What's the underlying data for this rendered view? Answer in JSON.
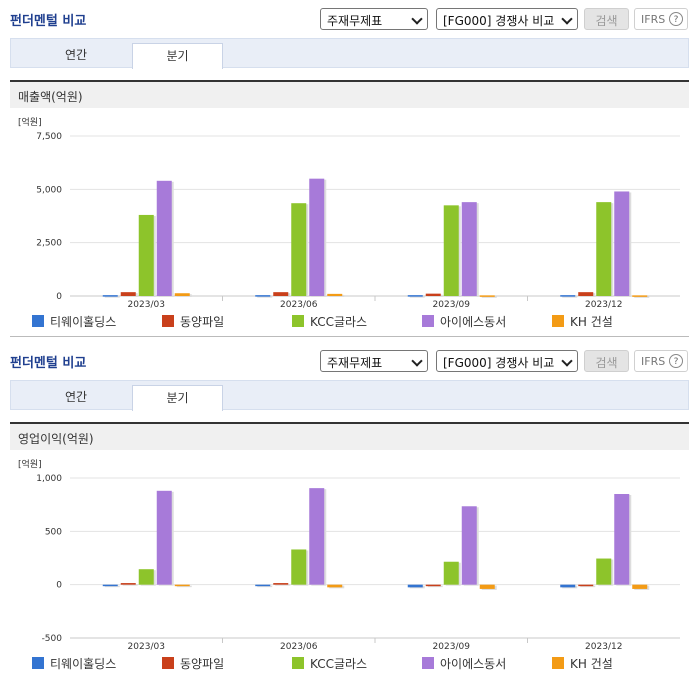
{
  "colors": {
    "series": [
      "#3374d1",
      "#c9401b",
      "#8dc42b",
      "#a77ad9",
      "#f39b15"
    ],
    "title": "#1f3f8f"
  },
  "panels": [
    {
      "title": "펀더멘털 비교",
      "select1": "주재무제표",
      "select2": "[FG000] 경쟁사 비교",
      "search_label": "검색",
      "ifrs_label": "IFRS",
      "help_icon": "?",
      "tabs": [
        "연간",
        "분기"
      ],
      "active_tab": 1,
      "section_title": "매출액(억원)"
    },
    {
      "title": "펀더멘털 비교",
      "select1": "주재무제표",
      "select2": "[FG000] 경쟁사 비교",
      "search_label": "검색",
      "ifrs_label": "IFRS",
      "help_icon": "?",
      "tabs": [
        "연간",
        "분기"
      ],
      "active_tab": 1,
      "section_title": "영업이익(억원)"
    }
  ],
  "chart_data": [
    {
      "type": "bar",
      "unit_label": "[억원]",
      "categories": [
        "2023/03",
        "2023/06",
        "2023/09",
        "2023/12"
      ],
      "yticks": [
        0,
        2500,
        5000,
        7500
      ],
      "ytick_labels": [
        "0",
        "2,500",
        "5,000",
        "7,500"
      ],
      "ylim": [
        0,
        7500
      ],
      "grid": true,
      "legend_position": "bottom",
      "series": [
        {
          "name": "티웨이홀딩스",
          "values": [
            40,
            40,
            40,
            40
          ]
        },
        {
          "name": "동양파일",
          "values": [
            180,
            180,
            110,
            180
          ]
        },
        {
          "name": "KCC글라스",
          "values": [
            3800,
            4350,
            4250,
            4400
          ]
        },
        {
          "name": "아이에스동서",
          "values": [
            5400,
            5500,
            4400,
            4900
          ]
        },
        {
          "name": "KH 건설",
          "values": [
            130,
            100,
            30,
            30
          ]
        }
      ]
    },
    {
      "type": "bar",
      "unit_label": "[억원]",
      "categories": [
        "2023/03",
        "2023/06",
        "2023/09",
        "2023/12"
      ],
      "yticks": [
        -500,
        0,
        500,
        1000
      ],
      "ytick_labels": [
        "-500",
        "0",
        "500",
        "1,000"
      ],
      "ylim": [
        -500,
        1000
      ],
      "grid": true,
      "legend_position": "bottom",
      "series": [
        {
          "name": "티웨이홀딩스",
          "values": [
            -5,
            -5,
            -25,
            -25
          ]
        },
        {
          "name": "동양파일",
          "values": [
            15,
            15,
            -10,
            -10
          ]
        },
        {
          "name": "KCC글라스",
          "values": [
            145,
            330,
            215,
            245
          ]
        },
        {
          "name": "아이에스동서",
          "values": [
            880,
            905,
            735,
            850
          ]
        },
        {
          "name": "KH 건설",
          "values": [
            -5,
            -25,
            -40,
            -40
          ]
        }
      ]
    }
  ]
}
